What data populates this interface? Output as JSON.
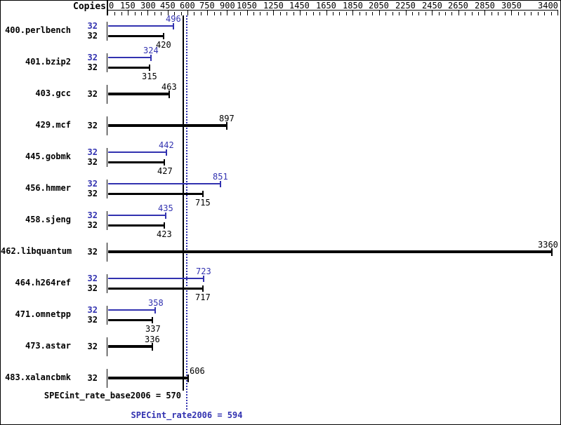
{
  "chart_data": {
    "type": "bar",
    "orientation": "horizontal",
    "copies_header": "Copies",
    "axis": {
      "min": 0,
      "max": 3400,
      "labeled_ticks": [
        0,
        150,
        300,
        450,
        600,
        750,
        900,
        1050,
        1250,
        1450,
        1650,
        1850,
        2050,
        2250,
        2450,
        2650,
        2850,
        3050,
        3400
      ],
      "minor_tick_step": 50,
      "position": "top"
    },
    "colors": {
      "peak": "#3232b0",
      "base": "#000000",
      "background": "#ffffff",
      "border": "#000000"
    },
    "legend": {
      "peak_series": "SPECint_rate2006 (peak, blue)",
      "base_series": "SPECint_rate_base2006 (base, black)"
    },
    "benchmarks": [
      {
        "name": "400.perlbench",
        "copies": 32,
        "peak": 496,
        "base": 420
      },
      {
        "name": "401.bzip2",
        "copies": 32,
        "peak": 324,
        "base": 315
      },
      {
        "name": "403.gcc",
        "copies": 32,
        "peak": null,
        "base": 463
      },
      {
        "name": "429.mcf",
        "copies": 32,
        "peak": null,
        "base": 897
      },
      {
        "name": "445.gobmk",
        "copies": 32,
        "peak": 442,
        "base": 427
      },
      {
        "name": "456.hmmer",
        "copies": 32,
        "peak": 851,
        "base": 715
      },
      {
        "name": "458.sjeng",
        "copies": 32,
        "peak": 435,
        "base": 423
      },
      {
        "name": "462.libquantum",
        "copies": 32,
        "peak": null,
        "base": 3360
      },
      {
        "name": "464.h264ref",
        "copies": 32,
        "peak": 723,
        "base": 717
      },
      {
        "name": "471.omnetpp",
        "copies": 32,
        "peak": 358,
        "base": 337
      },
      {
        "name": "473.astar",
        "copies": 32,
        "peak": null,
        "base": 336
      },
      {
        "name": "483.xalancbmk",
        "copies": 32,
        "peak": null,
        "base": 606,
        "base_label_align": "left"
      }
    ],
    "summary": {
      "base": {
        "label": "SPECint_rate_base2006 = 570",
        "value": 570,
        "line_style": "solid"
      },
      "peak": {
        "label": "SPECint_rate2006 = 594",
        "value": 594,
        "line_style": "dotted"
      }
    }
  }
}
